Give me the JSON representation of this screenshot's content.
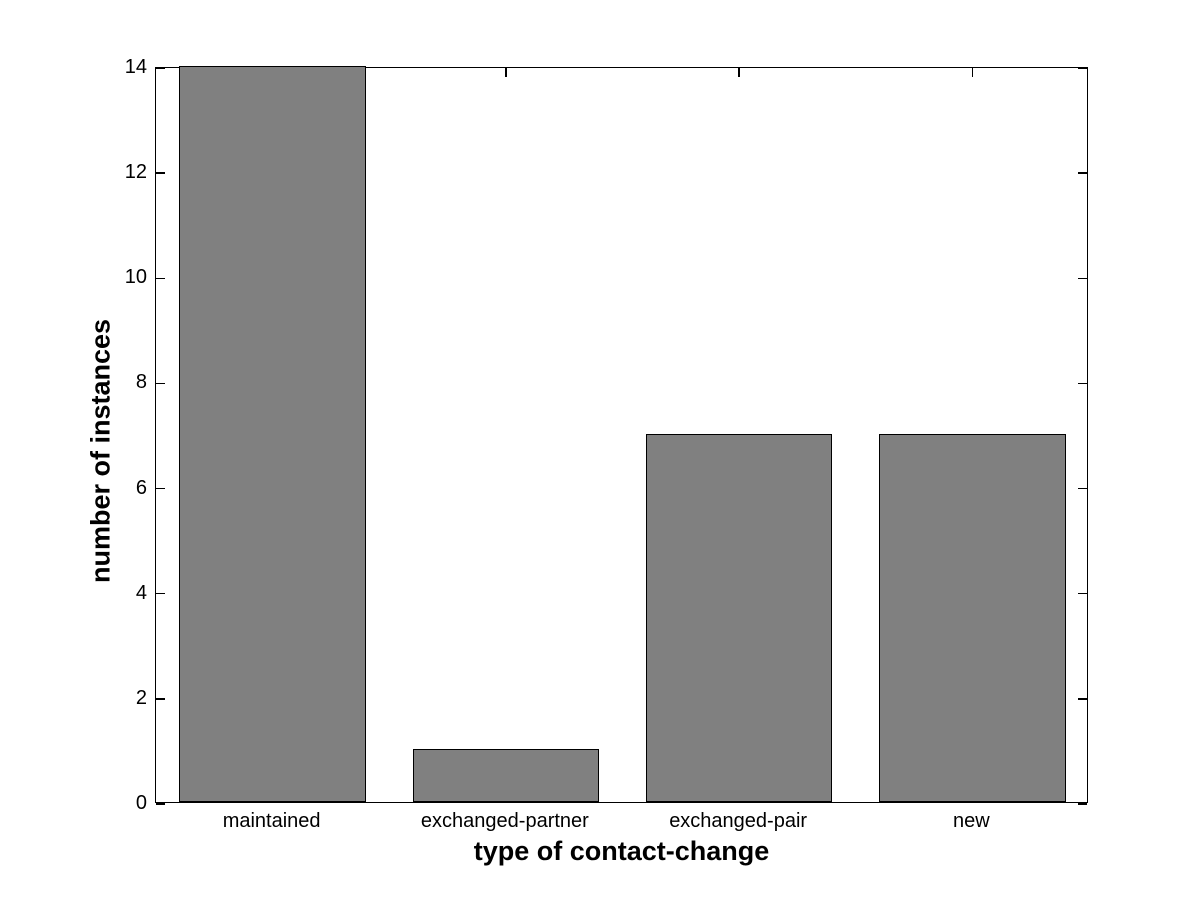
{
  "chart_data": {
    "type": "bar",
    "title": "",
    "categories": [
      "maintained",
      "exchanged-partner",
      "exchanged-pair",
      "new"
    ],
    "values": [
      14,
      1,
      7,
      7
    ],
    "xlabel": "type of contact-change",
    "ylabel": "number of instances",
    "ylim": [
      0,
      14
    ],
    "yticks": [
      0,
      2,
      4,
      6,
      8,
      10,
      12,
      14
    ],
    "grid": false,
    "legend": false,
    "bar_width_fraction": 0.8,
    "colors": {
      "bar_fill": "#808080",
      "bar_edge": "#000000",
      "axis": "#000000",
      "text": "#000000",
      "background": "#ffffff"
    }
  }
}
